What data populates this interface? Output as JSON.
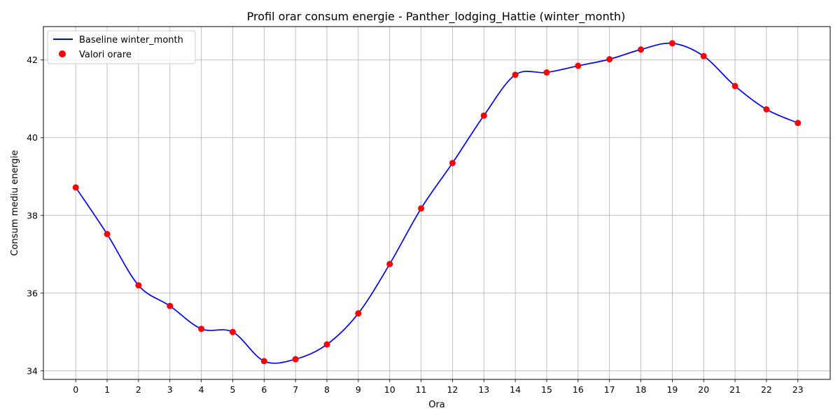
{
  "chart_data": {
    "type": "line",
    "title": "Profil orar consum energie - Panther_lodging_Hattie (winter_month)",
    "xlabel": "Ora",
    "ylabel": "Consum mediu energie",
    "x": [
      0,
      1,
      2,
      3,
      4,
      5,
      6,
      7,
      8,
      9,
      10,
      11,
      12,
      13,
      14,
      15,
      16,
      17,
      18,
      19,
      20,
      21,
      22,
      23
    ],
    "series": [
      {
        "name": "Baseline winter_month",
        "kind": "line",
        "color": "#0000ff",
        "values": [
          38.72,
          37.52,
          36.2,
          35.67,
          35.08,
          35.0,
          34.25,
          34.3,
          34.68,
          35.48,
          36.75,
          38.18,
          39.35,
          40.57,
          41.62,
          41.68,
          41.85,
          42.02,
          42.27,
          42.43,
          42.1,
          41.33,
          40.73,
          40.38
        ]
      },
      {
        "name": "Valori orare",
        "kind": "scatter",
        "color": "#ff0000",
        "values": [
          38.72,
          37.52,
          36.2,
          35.67,
          35.08,
          35.0,
          34.25,
          34.3,
          34.68,
          35.48,
          36.75,
          38.18,
          39.35,
          40.57,
          41.62,
          41.68,
          41.85,
          42.02,
          42.27,
          42.43,
          42.1,
          41.33,
          40.73,
          40.38
        ]
      }
    ],
    "xticks": [
      "0",
      "1",
      "2",
      "3",
      "4",
      "5",
      "6",
      "7",
      "8",
      "9",
      "10",
      "11",
      "12",
      "13",
      "14",
      "15",
      "16",
      "17",
      "18",
      "19",
      "20",
      "21",
      "22",
      "23"
    ],
    "yticks": [
      "34",
      "36",
      "38",
      "40",
      "42"
    ],
    "xlim": [
      -1.03,
      24.03
    ],
    "ylim": [
      33.78,
      42.86
    ],
    "grid": true,
    "legend": "top-left"
  }
}
